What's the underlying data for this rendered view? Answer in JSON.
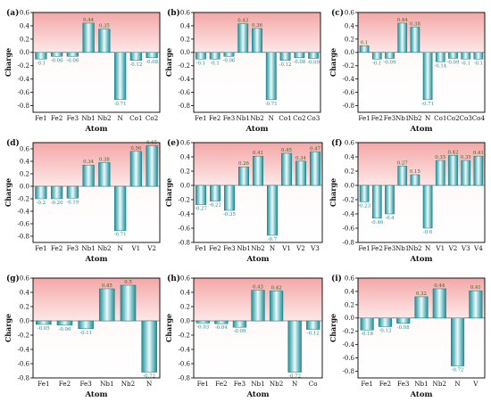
{
  "chart_data": [
    {
      "type": "bar",
      "panel_label": "(a)",
      "categories": [
        "Fe1",
        "Fe2",
        "Fe3",
        "Nb1",
        "Nb2",
        "N",
        "Co1",
        "Co2"
      ],
      "values": [
        -0.1,
        -0.06,
        -0.06,
        0.44,
        0.35,
        -0.71,
        -0.12,
        -0.08
      ],
      "value_labels": [
        "-0.1",
        "-0.06",
        "-0.06",
        "0.44",
        "0.35",
        "-0.71",
        "-0.12",
        "-0.08"
      ],
      "ylabel": "Charge",
      "xlabel": "Atom",
      "ylim": [
        -0.9,
        0.6
      ],
      "yticks": [
        -0.8,
        -0.6,
        -0.4,
        -0.2,
        0.0,
        0.2,
        0.4,
        0.6
      ],
      "ytick_labels": [
        "-0.8",
        "-0.6",
        "-0.4",
        "-0.2",
        "0.0",
        "0.2",
        "0.4",
        "0.6"
      ]
    },
    {
      "type": "bar",
      "panel_label": "(b)",
      "categories": [
        "Fe1",
        "Fe2",
        "Fe3",
        "Nb1",
        "Nb2",
        "N",
        "Co1",
        "Co2",
        "Co3"
      ],
      "values": [
        -0.1,
        -0.1,
        -0.06,
        0.43,
        0.36,
        -0.71,
        -0.12,
        -0.08,
        -0.09
      ],
      "value_labels": [
        "-0.1",
        "-0.1",
        "-0.06",
        "0.43",
        "0.36",
        "-0.71",
        "-0.12",
        "-0.08",
        "-0.09"
      ],
      "ylabel": "Charge",
      "xlabel": "Atom",
      "ylim": [
        -0.9,
        0.6
      ],
      "yticks": [
        -0.8,
        -0.6,
        -0.4,
        -0.2,
        0.0,
        0.2,
        0.4,
        0.6
      ],
      "ytick_labels": [
        "-0.8",
        "-0.6",
        "-0.4",
        "-0.2",
        "0.0",
        "0.2",
        "0.4",
        "0.6"
      ]
    },
    {
      "type": "bar",
      "panel_label": "(c)",
      "categories": [
        "Fe1",
        "Fe2",
        "Fe3",
        "Nb1",
        "Nb2",
        "N",
        "Co1",
        "Co2",
        "Co3",
        "Co4"
      ],
      "values": [
        0.1,
        -0.1,
        -0.09,
        0.44,
        0.38,
        -0.71,
        -0.14,
        -0.09,
        -0.1,
        -0.1
      ],
      "value_labels": [
        "0.1",
        "-0.1",
        "-0.09",
        "0.44",
        "0.38",
        "-0.71",
        "-0.14",
        "-0.09",
        "-0.1",
        "-0.1"
      ],
      "ylabel": "Charge",
      "xlabel": "Atom",
      "ylim": [
        -0.9,
        0.6
      ],
      "yticks": [
        -0.8,
        -0.6,
        -0.4,
        -0.2,
        0.0,
        0.2,
        0.4,
        0.6
      ],
      "ytick_labels": [
        "-0.8",
        "-0.6",
        "-0.4",
        "-0.2",
        "0.0",
        "0.2",
        "0.4",
        "0.6"
      ]
    },
    {
      "type": "bar",
      "panel_label": "(d)",
      "categories": [
        "Fe1",
        "Fe2",
        "Fe3",
        "Nb1",
        "Nb2",
        "N",
        "V1",
        "V2"
      ],
      "values": [
        -0.2,
        -0.2,
        -0.19,
        0.34,
        0.38,
        -0.71,
        0.56,
        0.65
      ],
      "value_labels": [
        "-0.2",
        "-0.20",
        "-0.19",
        "0.34",
        "0.38",
        "-0.71",
        "0.56",
        "0.65"
      ],
      "ylabel": "Charge",
      "xlabel": "Atom",
      "ylim": [
        -0.9,
        0.7
      ],
      "yticks": [
        -0.8,
        -0.6,
        -0.4,
        -0.2,
        0.0,
        0.2,
        0.4,
        0.6
      ],
      "ytick_labels": [
        "-0.8",
        "-0.6",
        "-0.4",
        "-0.2",
        "0.0",
        "0.2",
        "0.4",
        "0.6"
      ]
    },
    {
      "type": "bar",
      "panel_label": "(e)",
      "categories": [
        "Fe1",
        "Fe2",
        "Fe3",
        "Nb1",
        "Nb2",
        "N",
        "V1",
        "V2",
        "V3"
      ],
      "values": [
        -0.27,
        -0.22,
        -0.35,
        0.26,
        0.41,
        -0.7,
        0.45,
        0.34,
        0.47
      ],
      "value_labels": [
        "-0.27",
        "-0.22",
        "-0.35",
        "0.26",
        "0.41",
        "-0.7",
        "0.45",
        "0.34",
        "0.47"
      ],
      "ylabel": "Charge",
      "xlabel": "Atom",
      "ylim": [
        -0.8,
        0.6
      ],
      "yticks": [
        -0.8,
        -0.6,
        -0.4,
        -0.2,
        0.0,
        0.2,
        0.4,
        0.6
      ],
      "ytick_labels": [
        "-0.8",
        "-0.6",
        "-0.4",
        "-0.2",
        "0.0",
        "0.2",
        "0.4",
        "0.6"
      ]
    },
    {
      "type": "bar",
      "panel_label": "(f)",
      "categories": [
        "Fe1",
        "Fe2",
        "Fe3",
        "Nb1",
        "Nb2",
        "N",
        "V1",
        "V2",
        "V3",
        "V4"
      ],
      "values": [
        -0.23,
        -0.46,
        -0.4,
        0.27,
        0.15,
        -0.6,
        0.35,
        0.42,
        0.35,
        0.41
      ],
      "value_labels": [
        "-0.23",
        "-0.46",
        "-0.4",
        "0.27",
        "0.15",
        "-0.6",
        "0.35",
        "0.42",
        "0.35",
        "0.41"
      ],
      "ylabel": "Charge",
      "xlabel": "Atom",
      "ylim": [
        -0.8,
        0.6
      ],
      "yticks": [
        -0.8,
        -0.6,
        -0.4,
        -0.2,
        0.0,
        0.2,
        0.4,
        0.6
      ],
      "ytick_labels": [
        "-0.8",
        "-0.6",
        "-0.4",
        "-0.2",
        "0.0",
        "0.2",
        "0.4",
        "0.6"
      ]
    },
    {
      "type": "bar",
      "panel_label": "(g)",
      "categories": [
        "Fe1",
        "Fe2",
        "Fe3",
        "Nb1",
        "Nb2",
        "N"
      ],
      "values": [
        -0.05,
        -0.06,
        -0.11,
        0.45,
        0.5,
        -0.72
      ],
      "value_labels": [
        "-0.05",
        "-0.06",
        "-0.11",
        "0.45",
        "0.5",
        "-0.72"
      ],
      "ylabel": "Charge",
      "xlabel": "Atom",
      "ylim": [
        -0.8,
        0.6
      ],
      "yticks": [
        -0.8,
        -0.6,
        -0.4,
        -0.2,
        0.0,
        0.2,
        0.4,
        0.6
      ],
      "ytick_labels": [
        "-0.8",
        "-0.6",
        "-0.4",
        "-0.2",
        "0.0",
        "0.2",
        "0.4",
        "0.6"
      ]
    },
    {
      "type": "bar",
      "panel_label": "(h)",
      "categories": [
        "Fe1",
        "Fe2",
        "Fe3",
        "Nb1",
        "Nb2",
        "N",
        "Co"
      ],
      "values": [
        -0.03,
        -0.04,
        -0.09,
        0.43,
        0.42,
        -0.72,
        -0.12
      ],
      "value_labels": [
        "-0.03",
        "-0.04",
        "-0.09",
        "0.43",
        "0.42",
        "-0.72",
        "-0.12"
      ],
      "ylabel": "Charge",
      "xlabel": "Atom",
      "ylim": [
        -0.8,
        0.6
      ],
      "yticks": [
        -0.8,
        -0.6,
        -0.4,
        -0.2,
        0.0,
        0.2,
        0.4,
        0.6
      ],
      "ytick_labels": [
        "-0.8",
        "-0.6",
        "-0.4",
        "-0.2",
        "0.0",
        "0.2",
        "0.4",
        "0.6"
      ]
    },
    {
      "type": "bar",
      "panel_label": "(i)",
      "categories": [
        "Fe1",
        "Fe2",
        "Fe3",
        "Nb1",
        "Nb2",
        "N",
        "V"
      ],
      "values": [
        -0.18,
        -0.13,
        -0.08,
        0.32,
        0.44,
        -0.72,
        0.41
      ],
      "value_labels": [
        "-0.18",
        "-0.13",
        "-0.08",
        "0.32",
        "0.44",
        "-0.72",
        "0.41"
      ],
      "ylabel": "Charge",
      "xlabel": "Atom",
      "ylim": [
        -0.9,
        0.6
      ],
      "yticks": [
        -0.8,
        -0.6,
        -0.4,
        -0.2,
        0.0,
        0.2,
        0.4,
        0.6
      ],
      "ytick_labels": [
        "-0.8",
        "-0.6",
        "-0.4",
        "-0.2",
        "0.0",
        "0.2",
        "0.4",
        "0.6"
      ]
    }
  ],
  "colors": {
    "positive_bg_top": "#f4a7a7",
    "positive_bg_bottom": "#fde8e8",
    "negative_bg_top": "#fffafa",
    "negative_bg_bottom": "#ffffff",
    "bar_dark": "#1e8e96",
    "bar_light": "#e8fbfd",
    "value_label": "#2a8a82"
  }
}
